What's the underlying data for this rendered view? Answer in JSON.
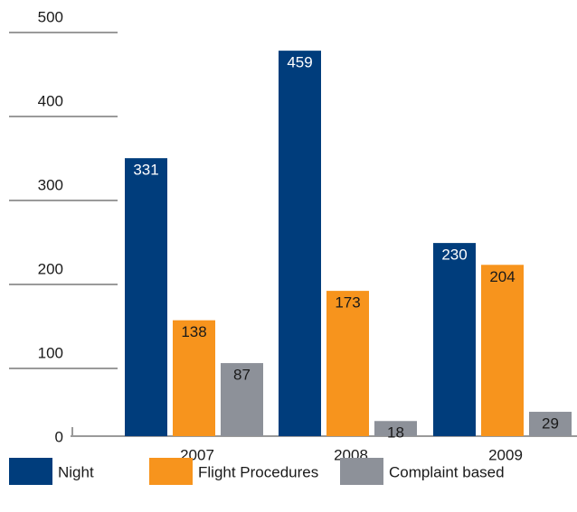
{
  "chart_data": {
    "type": "bar",
    "categories": [
      "2007",
      "2008",
      "2009"
    ],
    "series": [
      {
        "name": "Night",
        "color": "#003d7c",
        "values": [
          331,
          459,
          230
        ]
      },
      {
        "name": "Flight Procedures",
        "color": "#f7941d",
        "values": [
          138,
          173,
          204
        ]
      },
      {
        "name": "Complaint based",
        "color": "#8d9199",
        "values": [
          87,
          18,
          29
        ]
      }
    ],
    "ylim": [
      0,
      500
    ],
    "yticks": [
      0,
      100,
      200,
      300,
      400,
      500
    ],
    "grid": true,
    "legend": "bottom"
  }
}
